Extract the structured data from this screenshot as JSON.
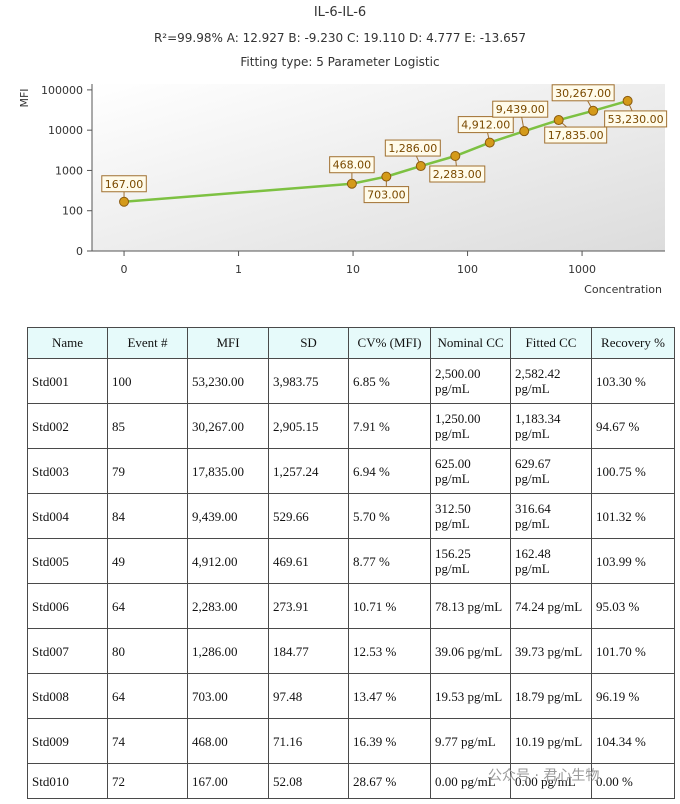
{
  "chart_data": {
    "type": "line",
    "title": "IL-6-IL-6",
    "subtitle": "R²=99.98% A: 12.927 B: -9.230 C: 19.110 D: 4.777 E: -13.657",
    "fitting": "Fitting type: 5 Parameter Logistic",
    "x_label": "Concentration",
    "y_label": "MFI",
    "x": [
      0.1,
      9.77,
      19.53,
      39.06,
      78.13,
      156.25,
      312.5,
      625,
      1250,
      2500
    ],
    "series": [
      {
        "color": "#7dc142",
        "marker_color": "#d49a1a",
        "values": [
          167,
          468,
          703,
          1286,
          2283,
          4912,
          9439,
          17835,
          30267,
          53230
        ],
        "value_labels": [
          "167.00",
          "468.00",
          "703.00",
          "1,286.00",
          "2,283.00",
          "4,912.00",
          "9,439.00",
          "17,835.00",
          "30,267.00",
          "53,230.00"
        ]
      }
    ],
    "xlog": true,
    "ylog": true,
    "xlim": [
      0.0525,
      5300
    ],
    "ylim": [
      10,
      140000
    ],
    "xticks": [
      {
        "value": 0.1,
        "label": "0"
      },
      1,
      10,
      100,
      1000
    ],
    "yticks": [
      {
        "value": 10,
        "label": "0"
      },
      100,
      1000,
      10000,
      100000
    ]
  },
  "table": {
    "header": [
      "Name",
      "Event #",
      "MFI",
      "SD",
      "CV% (MFI)",
      "Nominal CC",
      "Fitted CC",
      "Recovery %"
    ],
    "rows": [
      [
        "Std001",
        "100",
        "53,230.00",
        "3,983.75",
        "6.85 %",
        "2,500.00 pg/mL",
        "2,582.42 pg/mL",
        "103.30 %"
      ],
      [
        "Std002",
        "85",
        "30,267.00",
        "2,905.15",
        "7.91 %",
        "1,250.00 pg/mL",
        "1,183.34 pg/mL",
        "94.67 %"
      ],
      [
        "Std003",
        "79",
        "17,835.00",
        "1,257.24",
        "6.94 %",
        "625.00 pg/mL",
        "629.67 pg/mL",
        "100.75 %"
      ],
      [
        "Std004",
        "84",
        "9,439.00",
        "529.66",
        "5.70 %",
        "312.50 pg/mL",
        "316.64 pg/mL",
        "101.32 %"
      ],
      [
        "Std005",
        "49",
        "4,912.00",
        "469.61",
        "8.77 %",
        "156.25 pg/mL",
        "162.48 pg/mL",
        "103.99 %"
      ],
      [
        "Std006",
        "64",
        "2,283.00",
        "273.91",
        "10.71 %",
        "78.13 pg/mL",
        "74.24 pg/mL",
        "95.03 %"
      ],
      [
        "Std007",
        "80",
        "1,286.00",
        "184.77",
        "12.53 %",
        "39.06 pg/mL",
        "39.73 pg/mL",
        "101.70 %"
      ],
      [
        "Std008",
        "64",
        "703.00",
        "97.48",
        "13.47 %",
        "19.53 pg/mL",
        "18.79 pg/mL",
        "96.19 %"
      ],
      [
        "Std009",
        "74",
        "468.00",
        "71.16",
        "16.39 %",
        "9.77 pg/mL",
        "10.19 pg/mL",
        "104.34 %"
      ],
      [
        "Std010",
        "72",
        "167.00",
        "52.08",
        "28.67 %",
        "0.00 pg/mL",
        "0.00 pg/mL",
        "0.00 %"
      ]
    ]
  },
  "watermark": "公众号 · 君心生物"
}
